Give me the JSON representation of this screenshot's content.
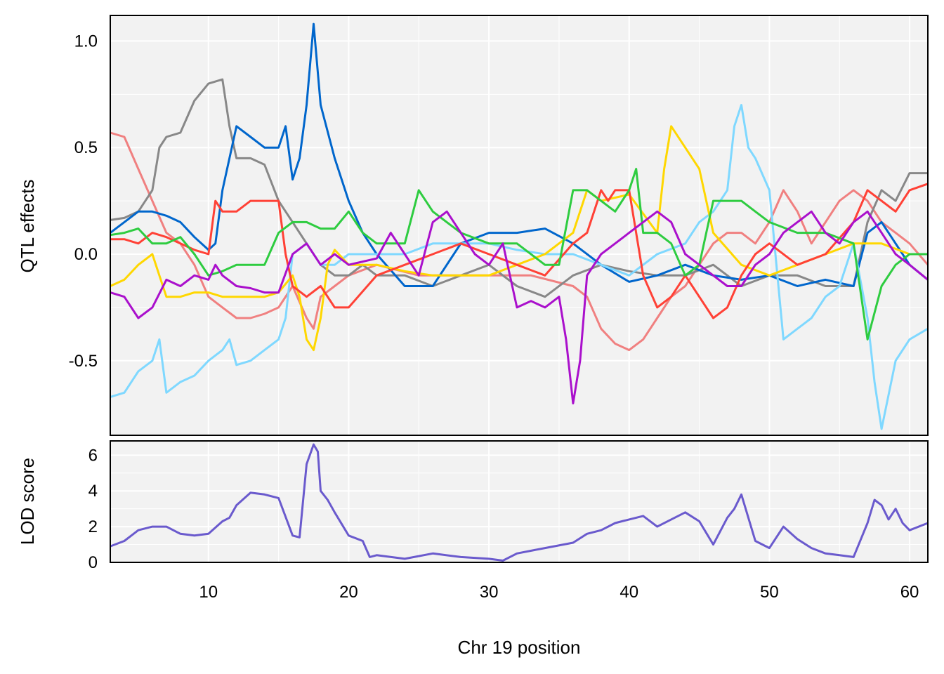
{
  "chart_data": [
    {
      "type": "line",
      "panel": "effects",
      "ylabel": "QTL effects",
      "xlim": [
        3,
        61.3
      ],
      "ylim": [
        -0.85,
        1.12
      ],
      "yticks": [
        -0.5,
        0.0,
        0.5,
        1.0
      ],
      "ytick_labels": [
        "-0.5",
        "0.0",
        "0.5",
        "1.0"
      ],
      "grid": true,
      "series": [
        {
          "color": "#F08080",
          "x": [
            3,
            4,
            5,
            6,
            7,
            8,
            9,
            10,
            11,
            12,
            13,
            14,
            15,
            16,
            17,
            17.5,
            18,
            19,
            20,
            22,
            25,
            28,
            30,
            33,
            36,
            37,
            38,
            39,
            40,
            41,
            42,
            43,
            44,
            45,
            46,
            47,
            48,
            49,
            50,
            51,
            52,
            53,
            54,
            55,
            56,
            57,
            58,
            59,
            60,
            61.3
          ],
          "y": [
            0.57,
            0.55,
            0.4,
            0.25,
            0.1,
            0.05,
            -0.05,
            -0.2,
            -0.25,
            -0.3,
            -0.3,
            -0.28,
            -0.25,
            -0.15,
            -0.3,
            -0.35,
            -0.2,
            -0.15,
            -0.1,
            -0.05,
            -0.1,
            -0.1,
            -0.1,
            -0.1,
            -0.15,
            -0.2,
            -0.35,
            -0.42,
            -0.45,
            -0.4,
            -0.3,
            -0.2,
            -0.15,
            -0.05,
            0.05,
            0.1,
            0.1,
            0.05,
            0.15,
            0.3,
            0.2,
            0.05,
            0.15,
            0.25,
            0.3,
            0.25,
            0.15,
            0.1,
            0.05,
            -0.05
          ]
        },
        {
          "color": "#888888",
          "x": [
            3,
            4,
            5,
            6,
            6.5,
            7,
            8,
            9,
            10,
            11,
            11.5,
            12,
            13,
            14,
            15,
            16,
            17,
            18,
            19,
            20,
            21,
            22,
            24,
            26,
            28,
            30,
            32,
            34,
            36,
            38,
            40,
            42,
            44,
            46,
            48,
            50,
            52,
            54,
            56,
            57,
            58,
            59,
            60,
            61.3
          ],
          "y": [
            0.16,
            0.17,
            0.2,
            0.3,
            0.5,
            0.55,
            0.57,
            0.72,
            0.8,
            0.82,
            0.6,
            0.45,
            0.45,
            0.42,
            0.25,
            0.15,
            0.05,
            -0.05,
            -0.1,
            -0.1,
            -0.05,
            -0.1,
            -0.1,
            -0.15,
            -0.1,
            -0.05,
            -0.15,
            -0.2,
            -0.1,
            -0.05,
            -0.08,
            -0.1,
            -0.1,
            -0.05,
            -0.15,
            -0.1,
            -0.1,
            -0.15,
            -0.15,
            0.15,
            0.3,
            0.25,
            0.38,
            0.38
          ]
        },
        {
          "color": "#0066CC",
          "x": [
            3,
            4,
            5,
            6,
            7,
            8,
            9,
            10,
            10.5,
            11,
            12,
            13,
            14,
            15,
            15.5,
            16,
            16.5,
            17,
            17.5,
            18,
            19,
            20,
            21,
            22,
            24,
            26,
            28,
            30,
            32,
            34,
            36,
            38,
            40,
            42,
            44,
            46,
            48,
            50,
            52,
            54,
            56,
            57,
            58,
            59,
            60,
            61.3
          ],
          "y": [
            0.1,
            0.15,
            0.2,
            0.2,
            0.18,
            0.15,
            0.08,
            0.02,
            0.05,
            0.3,
            0.6,
            0.55,
            0.5,
            0.5,
            0.6,
            0.35,
            0.45,
            0.7,
            1.08,
            0.7,
            0.45,
            0.25,
            0.1,
            0.0,
            -0.15,
            -0.15,
            0.05,
            0.1,
            0.1,
            0.12,
            0.05,
            -0.05,
            -0.13,
            -0.1,
            -0.05,
            -0.1,
            -0.12,
            -0.1,
            -0.15,
            -0.12,
            -0.15,
            0.1,
            0.15,
            0.05,
            -0.05,
            -0.12
          ]
        },
        {
          "color": "#7FD8FF",
          "x": [
            3,
            4,
            5,
            6,
            6.5,
            7,
            8,
            9,
            10,
            11,
            11.5,
            12,
            13,
            14,
            15,
            15.5,
            16,
            17,
            18,
            19,
            20,
            22,
            24,
            26,
            28,
            30,
            32,
            34,
            36,
            38,
            40,
            42,
            44,
            45,
            46,
            47,
            47.5,
            48,
            48.5,
            49,
            50,
            51,
            52,
            53,
            54,
            55,
            56,
            57,
            57.5,
            58,
            59,
            60,
            61.3
          ],
          "y": [
            -0.67,
            -0.65,
            -0.55,
            -0.5,
            -0.4,
            -0.65,
            -0.6,
            -0.57,
            -0.5,
            -0.45,
            -0.4,
            -0.52,
            -0.5,
            -0.45,
            -0.4,
            -0.3,
            0.0,
            0.05,
            -0.05,
            -0.05,
            0.0,
            0.0,
            0.0,
            0.05,
            0.05,
            0.05,
            0.02,
            0.0,
            0.0,
            -0.05,
            -0.1,
            0.0,
            0.05,
            0.15,
            0.2,
            0.3,
            0.6,
            0.7,
            0.5,
            0.45,
            0.3,
            -0.4,
            -0.35,
            -0.3,
            -0.2,
            -0.15,
            0.05,
            -0.3,
            -0.6,
            -0.82,
            -0.5,
            -0.4,
            -0.35
          ]
        },
        {
          "color": "#FFD700",
          "x": [
            3,
            4,
            5,
            6,
            7,
            8,
            9,
            10,
            11,
            12,
            13,
            14,
            15,
            16,
            16.5,
            17,
            17.5,
            18,
            18.5,
            19,
            20,
            22,
            24,
            26,
            28,
            30,
            32,
            34,
            36,
            37,
            38,
            40,
            42,
            42.5,
            43,
            44,
            45,
            46,
            48,
            50,
            52,
            54,
            56,
            58,
            60,
            61.3
          ],
          "y": [
            -0.15,
            -0.12,
            -0.05,
            0.0,
            -0.2,
            -0.2,
            -0.18,
            -0.18,
            -0.2,
            -0.2,
            -0.2,
            -0.2,
            -0.18,
            -0.1,
            -0.2,
            -0.4,
            -0.45,
            -0.3,
            -0.05,
            0.02,
            -0.05,
            -0.05,
            -0.08,
            -0.1,
            -0.1,
            -0.1,
            -0.05,
            0.0,
            0.1,
            0.3,
            0.25,
            0.28,
            0.1,
            0.4,
            0.6,
            0.5,
            0.4,
            0.1,
            -0.05,
            -0.1,
            -0.05,
            0.0,
            0.05,
            0.05,
            0.0,
            0.0
          ]
        },
        {
          "color": "#FF4136",
          "x": [
            3,
            4,
            5,
            6,
            7,
            8,
            9,
            10,
            10.5,
            11,
            12,
            13,
            14,
            15,
            15.5,
            16,
            17,
            18,
            19,
            20,
            22,
            24,
            26,
            28,
            30,
            32,
            34,
            36,
            37,
            38,
            38.5,
            39,
            40,
            41,
            42,
            43,
            44,
            45,
            46,
            47,
            48,
            49,
            50,
            52,
            54,
            56,
            57,
            58,
            59,
            60,
            61.3
          ],
          "y": [
            0.07,
            0.07,
            0.05,
            0.1,
            0.08,
            0.05,
            0.02,
            0.0,
            0.25,
            0.2,
            0.2,
            0.25,
            0.25,
            0.25,
            0.0,
            -0.15,
            -0.2,
            -0.15,
            -0.25,
            -0.25,
            -0.1,
            -0.05,
            0.0,
            0.05,
            0.0,
            -0.05,
            -0.1,
            0.05,
            0.1,
            0.3,
            0.25,
            0.3,
            0.3,
            -0.1,
            -0.25,
            -0.2,
            -0.1,
            -0.2,
            -0.3,
            -0.25,
            -0.1,
            0.0,
            0.05,
            -0.05,
            0.0,
            0.15,
            0.3,
            0.25,
            0.2,
            0.3,
            0.33
          ]
        },
        {
          "color": "#2ECC40",
          "x": [
            3,
            4,
            5,
            6,
            7,
            8,
            9,
            10,
            11,
            12,
            13,
            14,
            15,
            16,
            17,
            18,
            19,
            20,
            21,
            22,
            24,
            25,
            26,
            28,
            30,
            32,
            34,
            35,
            36,
            37,
            38,
            39,
            40,
            40.5,
            41,
            42,
            43,
            44,
            45,
            46,
            47,
            48,
            49,
            50,
            52,
            54,
            56,
            57,
            58,
            59,
            60,
            61.3
          ],
          "y": [
            0.09,
            0.1,
            0.12,
            0.05,
            0.05,
            0.08,
            0.0,
            -0.1,
            -0.08,
            -0.05,
            -0.05,
            -0.05,
            0.1,
            0.15,
            0.15,
            0.12,
            0.12,
            0.2,
            0.1,
            0.05,
            0.05,
            0.3,
            0.2,
            0.1,
            0.05,
            0.05,
            -0.05,
            -0.05,
            0.3,
            0.3,
            0.25,
            0.2,
            0.3,
            0.4,
            0.1,
            0.1,
            0.05,
            -0.1,
            -0.05,
            0.25,
            0.25,
            0.25,
            0.2,
            0.15,
            0.1,
            0.1,
            0.05,
            -0.4,
            -0.15,
            -0.05,
            0.0,
            0.0
          ]
        },
        {
          "color": "#AA10CC",
          "x": [
            3,
            4,
            5,
            6,
            7,
            8,
            9,
            10,
            10.5,
            11,
            12,
            13,
            14,
            15,
            16,
            17,
            18,
            19,
            20,
            22,
            23,
            24,
            25,
            26,
            27,
            28,
            29,
            30,
            31,
            32,
            33,
            34,
            35,
            35.5,
            36,
            36.5,
            37,
            38,
            39,
            40,
            41,
            42,
            43,
            44,
            45,
            46,
            47,
            48,
            49,
            50,
            51,
            52,
            53,
            54,
            55,
            56,
            57,
            58,
            59,
            60,
            61.3
          ],
          "y": [
            -0.18,
            -0.2,
            -0.3,
            -0.25,
            -0.12,
            -0.15,
            -0.1,
            -0.12,
            -0.05,
            -0.1,
            -0.15,
            -0.16,
            -0.18,
            -0.18,
            0.0,
            0.05,
            -0.05,
            0.0,
            -0.05,
            -0.02,
            0.1,
            0.0,
            -0.1,
            0.15,
            0.2,
            0.1,
            0.0,
            -0.05,
            0.05,
            -0.25,
            -0.22,
            -0.25,
            -0.2,
            -0.4,
            -0.7,
            -0.5,
            -0.1,
            0.0,
            0.05,
            0.1,
            0.15,
            0.2,
            0.15,
            0.0,
            -0.05,
            -0.1,
            -0.15,
            -0.15,
            -0.05,
            0.0,
            0.1,
            0.15,
            0.2,
            0.1,
            0.05,
            0.15,
            0.2,
            0.1,
            0.0,
            -0.05,
            -0.12
          ]
        }
      ]
    },
    {
      "type": "line",
      "panel": "lod",
      "ylabel": "LOD score",
      "xlabel": "Chr 19 position",
      "xlim": [
        3,
        61.3
      ],
      "ylim": [
        0,
        6.8
      ],
      "yticks": [
        0,
        2,
        4,
        6
      ],
      "ytick_labels": [
        "0",
        "2",
        "4",
        "6"
      ],
      "xticks": [
        10,
        20,
        30,
        40,
        50,
        60
      ],
      "xtick_labels": [
        "10",
        "20",
        "30",
        "40",
        "50",
        "60"
      ],
      "grid": true,
      "series": [
        {
          "color": "#6A5ACD",
          "x": [
            3,
            4,
            5,
            6,
            7,
            8,
            9,
            10,
            11,
            11.5,
            12,
            13,
            14,
            15,
            16,
            16.5,
            17,
            17.5,
            17.8,
            18,
            18.5,
            19,
            20,
            21,
            21.5,
            22,
            24,
            26,
            28,
            30,
            31,
            32,
            34,
            36,
            37,
            38,
            39,
            40,
            41,
            42,
            43,
            44,
            45,
            46,
            47,
            47.5,
            48,
            49,
            50,
            51,
            52,
            53,
            54,
            55,
            56,
            57,
            57.5,
            58,
            58.5,
            59,
            59.5,
            60,
            61.3
          ],
          "y": [
            0.9,
            1.2,
            1.8,
            2.0,
            2.0,
            1.6,
            1.5,
            1.6,
            2.3,
            2.5,
            3.2,
            3.9,
            3.8,
            3.6,
            1.5,
            1.4,
            5.5,
            6.6,
            6.2,
            4.0,
            3.5,
            2.8,
            1.5,
            1.2,
            0.3,
            0.4,
            0.2,
            0.5,
            0.3,
            0.2,
            0.1,
            0.5,
            0.8,
            1.1,
            1.6,
            1.8,
            2.2,
            2.4,
            2.6,
            2.0,
            2.4,
            2.8,
            2.3,
            1.0,
            2.5,
            3.0,
            3.8,
            1.2,
            0.8,
            2.0,
            1.3,
            0.8,
            0.5,
            0.4,
            0.3,
            2.2,
            3.5,
            3.2,
            2.4,
            3.0,
            2.2,
            1.8,
            2.2
          ]
        }
      ]
    }
  ]
}
